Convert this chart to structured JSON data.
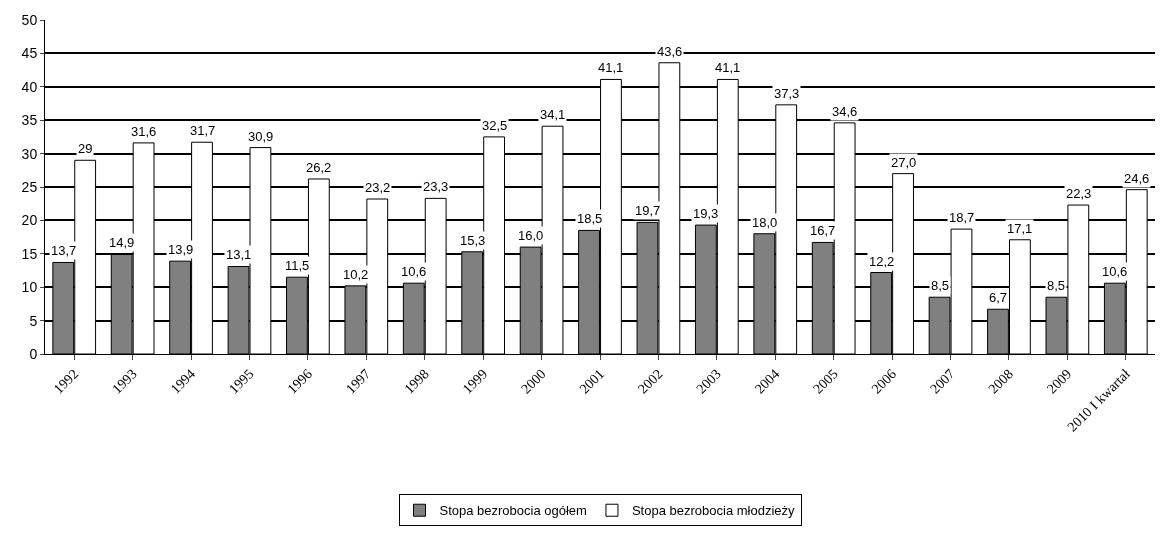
{
  "chart_data": {
    "type": "bar",
    "categories": [
      "1992",
      "1993",
      "1994",
      "1995",
      "1996",
      "1997",
      "1998",
      "1999",
      "2000",
      "2001",
      "2002",
      "2003",
      "2004",
      "2005",
      "2006",
      "2007",
      "2008",
      "2009",
      "2010 I kwartał"
    ],
    "series": [
      {
        "name": "Stopa bezrobocia ogółem",
        "color": "#808080",
        "values": [
          13.7,
          14.9,
          13.9,
          13.1,
          11.5,
          10.2,
          10.6,
          15.3,
          16.0,
          18.5,
          19.7,
          19.3,
          18.0,
          16.7,
          12.2,
          8.5,
          6.7,
          8.5,
          10.6
        ],
        "value_labels": [
          "13,7",
          "14,9",
          "13,9",
          "13,1",
          "11,5",
          "10,2",
          "10,6",
          "15,3",
          "16,0",
          "18,5",
          "19,7",
          "19,3",
          "18,0",
          "16,7",
          "12,2",
          "8,5",
          "6,7",
          "8,5",
          "10,6"
        ]
      },
      {
        "name": "Stopa bezrobocia młodzieży",
        "color": "#ffffff",
        "values": [
          29,
          31.6,
          31.7,
          30.9,
          26.2,
          23.2,
          23.3,
          32.5,
          34.1,
          41.1,
          43.6,
          41.1,
          37.3,
          34.6,
          27.0,
          18.7,
          17.1,
          22.3,
          24.6
        ],
        "value_labels": [
          "29",
          "31,6",
          "31,7",
          "30,9",
          "26,2",
          "23,2",
          "23,3",
          "32,5",
          "34,1",
          "41,1",
          "43,6",
          "41,1",
          "37,3",
          "34,6",
          "27,0",
          "18,7",
          "17,1",
          "22,3",
          "24,6"
        ]
      }
    ],
    "ylim": [
      0,
      50
    ],
    "yticks": [
      0,
      5,
      10,
      15,
      20,
      25,
      30,
      35,
      40,
      45,
      50
    ],
    "grid": "y",
    "legend": "bottom"
  }
}
